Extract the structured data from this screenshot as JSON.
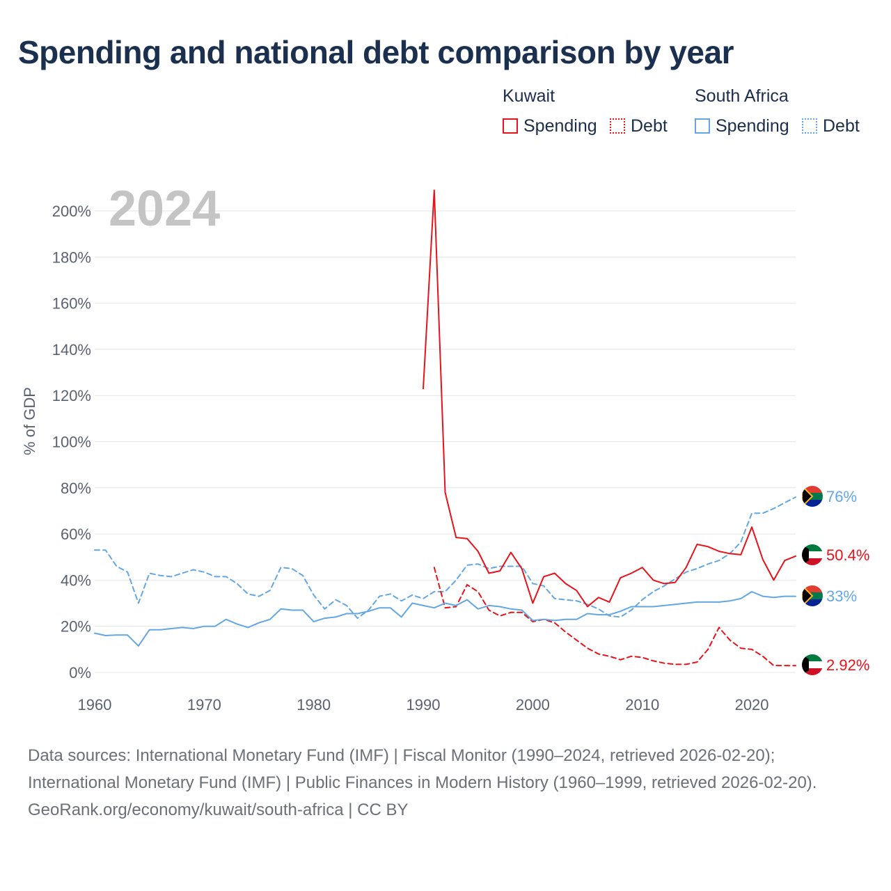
{
  "title": "Spending and national debt comparison by year",
  "legend": {
    "groups": [
      {
        "title": "Kuwait",
        "items": [
          {
            "label": "Spending"
          },
          {
            "label": "Debt"
          }
        ]
      },
      {
        "title": "South Africa",
        "items": [
          {
            "label": "Spending"
          },
          {
            "label": "Debt"
          }
        ]
      }
    ]
  },
  "colors": {
    "kuwait": "#e8121a",
    "south_africa": "#62a7e3",
    "grid": "#e4e4e4",
    "year_mark": "#c4c4c4"
  },
  "chart_data": {
    "type": "line",
    "title": "Spending and national debt comparison by year",
    "year_mark": "2024",
    "ylabel": "% of GDP",
    "xlabel": "",
    "xlim": [
      1960,
      2024
    ],
    "ylim": [
      0,
      200
    ],
    "x_ticks": [
      1960,
      1970,
      1980,
      1990,
      2000,
      2010,
      2020
    ],
    "y_ticks": [
      0,
      20,
      40,
      60,
      80,
      100,
      120,
      140,
      160,
      180,
      200
    ],
    "y_tick_labels": [
      "0%",
      "20%",
      "40%",
      "60%",
      "80%",
      "100%",
      "120%",
      "140%",
      "160%",
      "180%",
      "200%"
    ],
    "grid": true,
    "series": [
      {
        "name": "South Africa Debt",
        "country": "South Africa",
        "measure": "Debt",
        "style": "dashed",
        "color": "#62a7e3",
        "end_label": "76%",
        "x": [
          1960,
          1961,
          1962,
          1963,
          1964,
          1965,
          1966,
          1967,
          1968,
          1969,
          1970,
          1971,
          1972,
          1973,
          1974,
          1975,
          1976,
          1977,
          1978,
          1979,
          1980,
          1981,
          1982,
          1983,
          1984,
          1985,
          1986,
          1987,
          1988,
          1989,
          1990,
          1991,
          1992,
          1993,
          1994,
          1995,
          1996,
          1997,
          1998,
          1999,
          2000,
          2001,
          2002,
          2003,
          2004,
          2005,
          2006,
          2007,
          2008,
          2009,
          2010,
          2011,
          2012,
          2013,
          2014,
          2015,
          2016,
          2017,
          2018,
          2019,
          2020,
          2021,
          2022,
          2023,
          2024
        ],
        "y": [
          53,
          53,
          46,
          43.5,
          30,
          43,
          42,
          41.5,
          43,
          44.5,
          43.5,
          41.5,
          41.5,
          38.5,
          34,
          33,
          35.5,
          45.5,
          45,
          42,
          33.5,
          27.5,
          31.5,
          29,
          23.5,
          27,
          33,
          34,
          31,
          33.5,
          32,
          35,
          35,
          40,
          46.5,
          47,
          45,
          46,
          46,
          46,
          38.5,
          37.5,
          32,
          31.5,
          31,
          29.5,
          27.5,
          24.5,
          24,
          27,
          31.5,
          35,
          37.5,
          40.5,
          43.5,
          45,
          47,
          48.5,
          51.5,
          56.5,
          69,
          69,
          71,
          73.5,
          76
        ]
      },
      {
        "name": "Kuwait Spending",
        "country": "Kuwait",
        "measure": "Spending",
        "style": "solid",
        "color": "#e8121a",
        "end_label": "50.4%",
        "x": [
          1990,
          1991,
          1992,
          1993,
          1994,
          1995,
          1996,
          1997,
          1998,
          1999,
          2000,
          2001,
          2002,
          2003,
          2004,
          2005,
          2006,
          2007,
          2008,
          2009,
          2010,
          2011,
          2012,
          2013,
          2014,
          2015,
          2016,
          2017,
          2018,
          2019,
          2020,
          2021,
          2022,
          2023,
          2024
        ],
        "y": [
          123,
          209,
          78,
          58.5,
          58,
          52.5,
          43,
          44,
          52,
          45,
          30,
          41.5,
          43,
          38.5,
          35.5,
          28.5,
          32.5,
          30.5,
          41,
          43,
          45.5,
          40,
          38.5,
          39,
          45.5,
          55.5,
          54.5,
          52.5,
          51.5,
          51,
          63,
          49,
          40,
          48.5,
          50.4
        ]
      },
      {
        "name": "Kuwait Debt",
        "country": "Kuwait",
        "measure": "Debt",
        "style": "dashed",
        "color": "#e8121a",
        "end_label": "2.92%",
        "x": [
          1991,
          1992,
          1993,
          1994,
          1995,
          1996,
          1997,
          1998,
          1999,
          2000,
          2001,
          2002,
          2003,
          2004,
          2005,
          2006,
          2007,
          2008,
          2009,
          2010,
          2011,
          2012,
          2013,
          2014,
          2015,
          2016,
          2017,
          2018,
          2019,
          2020,
          2021,
          2022,
          2023,
          2024
        ],
        "y": [
          45.5,
          28,
          28.5,
          38,
          35,
          27,
          24.5,
          26,
          26,
          22,
          23,
          21.5,
          17.5,
          14,
          10.5,
          8,
          7,
          5.5,
          7,
          6.5,
          5,
          4,
          3.5,
          3.5,
          4.5,
          10,
          19.5,
          14,
          10.5,
          10,
          7,
          3,
          3,
          2.92
        ]
      },
      {
        "name": "South Africa Spending",
        "country": "South Africa",
        "measure": "Spending",
        "style": "solid",
        "color": "#62a7e3",
        "end_label": "33%",
        "x": [
          1960,
          1961,
          1962,
          1963,
          1964,
          1965,
          1966,
          1967,
          1968,
          1969,
          1970,
          1971,
          1972,
          1973,
          1974,
          1975,
          1976,
          1977,
          1978,
          1979,
          1980,
          1981,
          1982,
          1983,
          1984,
          1985,
          1986,
          1987,
          1988,
          1989,
          1990,
          1991,
          1992,
          1993,
          1994,
          1995,
          1996,
          1997,
          1998,
          1999,
          2000,
          2001,
          2002,
          2003,
          2004,
          2005,
          2006,
          2007,
          2008,
          2009,
          2010,
          2011,
          2012,
          2013,
          2014,
          2015,
          2016,
          2017,
          2018,
          2019,
          2020,
          2021,
          2022,
          2023,
          2024
        ],
        "y": [
          17,
          16,
          16.2,
          16.2,
          11.5,
          18.5,
          18.5,
          19,
          19.5,
          19,
          20,
          20,
          23,
          21,
          19.5,
          21.5,
          23,
          27.5,
          27,
          27,
          22,
          23.5,
          24,
          25.5,
          25.5,
          26.5,
          28,
          28,
          24,
          30,
          29,
          28,
          30,
          29,
          31.5,
          27.5,
          29,
          28.5,
          27.5,
          27,
          22.5,
          23,
          22.5,
          23,
          23,
          25.5,
          25,
          25,
          26.5,
          28.5,
          28.5,
          28.5,
          29,
          29.5,
          30,
          30.5,
          30.5,
          30.5,
          31,
          32,
          35,
          33,
          32.5,
          33,
          33
        ]
      }
    ]
  },
  "footer": {
    "sources": "Data sources: International Monetary Fund (IMF) | Fiscal Monitor (1990–2024, retrieved 2026-02-20); International Monetary Fund (IMF) | Public Finances in Modern History (1960–1999, retrieved 2026-02-20).",
    "credit": "GeoRank.org/economy/kuwait/south-africa | CC BY"
  }
}
